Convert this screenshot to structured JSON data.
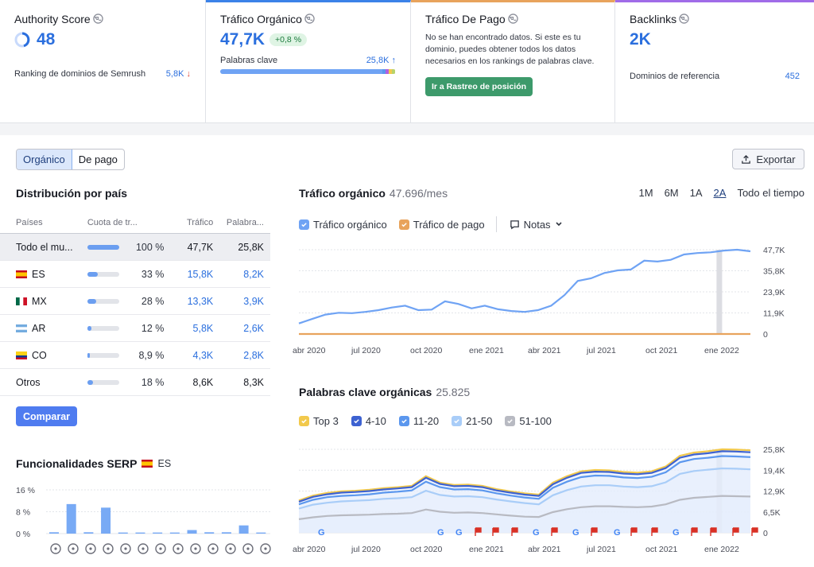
{
  "kpis": {
    "authority": {
      "title": "Authority Score",
      "value": "48",
      "sub_label": "Ranking de dominios de Semrush",
      "sub_value": "5,8K",
      "sub_arrow": "↓"
    },
    "organic": {
      "title": "Tráfico Orgánico",
      "value": "47,7K",
      "badge": "+0,8 %",
      "sub_label": "Palabras clave",
      "sub_value": "25,8K",
      "sub_arrow": "↑"
    },
    "paid": {
      "title": "Tráfico De Pago",
      "text": "No se han encontrado datos. Si este es tu dominio, puedes obtener todos los datos necesarios en los rankings de palabras clave.",
      "button": "Ir a Rastreo de posición"
    },
    "backlinks": {
      "title": "Backlinks",
      "value": "2K",
      "sub_label": "Dominios de referencia",
      "sub_value": "452"
    }
  },
  "tabs": {
    "organic": "Orgánico",
    "paid": "De pago"
  },
  "export_label": "Exportar",
  "country": {
    "title": "Distribución por país",
    "headers": [
      "Países",
      "Cuota de tr...",
      "Tráfico",
      "Palabra..."
    ],
    "rows": [
      {
        "name": "Todo el mu...",
        "flag": "",
        "share": "100 %",
        "share_value": 100,
        "traffic": "47,7K",
        "keywords": "25,8K"
      },
      {
        "name": "ES",
        "flag": "es",
        "share": "33 %",
        "share_value": 33,
        "traffic": "15,8K",
        "keywords": "8,2K"
      },
      {
        "name": "MX",
        "flag": "mx",
        "share": "28 %",
        "share_value": 28,
        "traffic": "13,3K",
        "keywords": "3,9K"
      },
      {
        "name": "AR",
        "flag": "ar",
        "share": "12 %",
        "share_value": 12,
        "traffic": "5,8K",
        "keywords": "2,6K"
      },
      {
        "name": "CO",
        "flag": "co",
        "share": "8,9 %",
        "share_value": 8.9,
        "traffic": "4,3K",
        "keywords": "2,8K"
      },
      {
        "name": "Otros",
        "flag": "",
        "share": "18 %",
        "share_value": 18,
        "traffic": "8,6K",
        "keywords": "8,3K"
      }
    ],
    "compare_button": "Comparar"
  },
  "serp": {
    "title": "Funcionalidades SERP",
    "country": "ES",
    "y_ticks": [
      "16 %",
      "8 %",
      "0 %"
    ],
    "icons": [
      "graduation-cap-icon",
      "pin-icon",
      "news-icon",
      "image-icon",
      "link-icon",
      "star-icon",
      "play-icon",
      "video-icon",
      "crown-icon",
      "gallery-icon",
      "play-icon",
      "quote-icon",
      "question-icon"
    ]
  },
  "traffic_chart": {
    "title": "Tráfico orgánico",
    "value": "47.696/mes",
    "periods": [
      "1M",
      "6M",
      "1A",
      "2A",
      "Todo el tiempo"
    ],
    "active_period": "2A",
    "legend": {
      "organic": "Tráfico orgánico",
      "paid": "Tráfico de pago",
      "notes": "Notas"
    },
    "colors": {
      "organic": "#6fa3f4",
      "paid": "#e8a35c"
    }
  },
  "keywords_chart": {
    "title": "Palabras clave orgánicas",
    "value": "25.825",
    "legend": [
      "Top 3",
      "4-10",
      "11-20",
      "21-50",
      "51-100"
    ],
    "colors": [
      "#f2c94c",
      "#3d62d1",
      "#5b97ee",
      "#a9cdf8",
      "#b8bac2"
    ]
  },
  "chart_data": [
    {
      "type": "area",
      "title": "Tráfico orgánico",
      "x_ticks": [
        "abr 2020",
        "jul 2020",
        "oct 2020",
        "ene 2021",
        "abr 2021",
        "jul 2021",
        "oct 2021",
        "ene 2022"
      ],
      "y_ticks": [
        "47,7K",
        "35,8K",
        "23,9K",
        "11,9K",
        "0"
      ],
      "ylim": [
        0,
        47700
      ],
      "series": [
        {
          "name": "Tráfico orgánico",
          "values": [
            6000,
            8500,
            11000,
            12000,
            11800,
            12500,
            13500,
            15000,
            16000,
            13500,
            13800,
            18500,
            17000,
            14500,
            16000,
            14000,
            13000,
            12500,
            13500,
            16000,
            22000,
            30000,
            31500,
            34500,
            36000,
            36500,
            41500,
            41000,
            42000,
            45000,
            45800,
            46200,
            47200,
            47700,
            46800
          ]
        },
        {
          "name": "Tráfico de pago",
          "values": [
            0,
            0,
            0,
            0,
            0,
            0,
            0,
            0,
            0,
            0,
            0,
            0,
            0,
            0,
            0,
            0,
            0,
            0,
            0,
            0,
            0,
            0,
            0,
            0,
            0,
            0,
            0,
            0,
            0,
            0,
            0,
            0,
            0,
            0,
            0
          ]
        }
      ]
    },
    {
      "type": "area",
      "title": "Palabras clave orgánicas",
      "x_ticks": [
        "abr 2020",
        "jul 2020",
        "oct 2020",
        "ene 2021",
        "abr 2021",
        "jul 2021",
        "oct 2021",
        "ene 2022"
      ],
      "y_ticks": [
        "25,8K",
        "19,4K",
        "12,9K",
        "6,5K",
        "0"
      ],
      "ylim": [
        0,
        25800
      ],
      "series": [
        {
          "name": "Top 3",
          "values": [
            10000,
            11500,
            12300,
            12800,
            13000,
            13300,
            13800,
            14100,
            14500,
            17500,
            15500,
            14800,
            14900,
            14500,
            13500,
            12800,
            12200,
            11800,
            15500,
            17500,
            19000,
            19400,
            19300,
            18800,
            18600,
            19000,
            20500,
            23800,
            24800,
            25200,
            25800,
            25700,
            25500
          ]
        },
        {
          "name": "4-10",
          "values": [
            9600,
            11100,
            11900,
            12400,
            12600,
            12900,
            13400,
            13700,
            14100,
            17000,
            15100,
            14400,
            14500,
            14100,
            13100,
            12400,
            11800,
            11400,
            15000,
            17000,
            18500,
            18900,
            18800,
            18300,
            18100,
            18500,
            20000,
            23200,
            24200,
            24600,
            25200,
            25100,
            24900
          ]
        },
        {
          "name": "11-20",
          "values": [
            8800,
            10200,
            11000,
            11400,
            11600,
            11900,
            12400,
            12700,
            13100,
            15800,
            14100,
            13400,
            13500,
            13100,
            12200,
            11500,
            10900,
            10500,
            13900,
            15800,
            17200,
            17700,
            17600,
            17100,
            16900,
            17300,
            18700,
            21800,
            22800,
            23200,
            23700,
            23600,
            23400
          ]
        },
        {
          "name": "21-50",
          "values": [
            7500,
            8700,
            9300,
            9700,
            9900,
            10100,
            10500,
            10700,
            11000,
            13000,
            11700,
            11200,
            11300,
            11000,
            10300,
            9700,
            9200,
            8800,
            11600,
            13200,
            14300,
            14700,
            14700,
            14300,
            14100,
            14400,
            15600,
            18200,
            19100,
            19500,
            19900,
            19800,
            19600
          ]
        },
        {
          "name": "51-100",
          "values": [
            4200,
            4800,
            5200,
            5400,
            5500,
            5600,
            5800,
            5900,
            6100,
            7200,
            6500,
            6200,
            6300,
            6100,
            5700,
            5300,
            5000,
            4900,
            6400,
            7300,
            7900,
            8200,
            8200,
            8000,
            7900,
            8100,
            8800,
            10200,
            10800,
            11100,
            11400,
            11300,
            11200
          ]
        }
      ]
    },
    {
      "type": "bar",
      "title": "Funcionalidades SERP",
      "y_ticks": [
        "16 %",
        "8 %",
        "0 %"
      ],
      "ylim": [
        0,
        16
      ],
      "values": [
        0.5,
        10.8,
        0.5,
        9.5,
        0.4,
        0.4,
        0.4,
        0.4,
        1.3,
        0.5,
        0.5,
        3.0,
        0.4
      ]
    }
  ]
}
